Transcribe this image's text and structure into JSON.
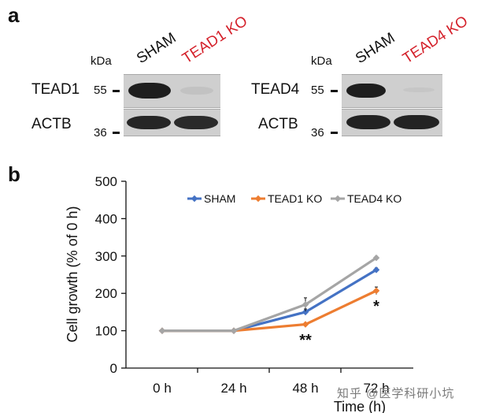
{
  "panel_a": {
    "letter": "a",
    "left_blot": {
      "kda_label": "kDa",
      "lanes": [
        "SHAM",
        "TEAD1 KO"
      ],
      "rows": [
        {
          "protein": "TEAD1",
          "mw": "55"
        },
        {
          "protein": "ACTB",
          "mw": "36"
        }
      ]
    },
    "right_blot": {
      "kda_label": "kDa",
      "lanes": [
        "SHAM",
        "TEAD4 KO"
      ],
      "rows": [
        {
          "protein": "TEAD4",
          "mw": "55"
        },
        {
          "protein": "ACTB",
          "mw": "36"
        }
      ]
    }
  },
  "panel_b": {
    "letter": "b"
  },
  "chart_data": {
    "type": "line",
    "title": "",
    "xlabel": "Time (h)",
    "ylabel": "Cell growth (% of 0 h)",
    "categories": [
      "0 h",
      "24 h",
      "48 h",
      "72 h"
    ],
    "yticks": [
      "0",
      "100",
      "200",
      "300",
      "400",
      "500"
    ],
    "ylim": [
      0,
      500
    ],
    "grid": false,
    "legend_position": "top-right",
    "series": [
      {
        "name": "SHAM",
        "color": "#4472c4",
        "values": [
          100,
          100,
          150,
          263
        ],
        "errors": [
          0,
          0,
          8,
          5
        ]
      },
      {
        "name": "TEAD1 KO",
        "color": "#ed7d31",
        "values": [
          100,
          100,
          117,
          207
        ],
        "errors": [
          0,
          0,
          3,
          10
        ]
      },
      {
        "name": "TEAD4 KO",
        "color": "#a5a5a5",
        "values": [
          100,
          100,
          170,
          295
        ],
        "errors": [
          0,
          0,
          18,
          4
        ]
      }
    ],
    "annotations": [
      {
        "text": "**",
        "category": "48 h"
      },
      {
        "text": "*",
        "category": "72 h"
      }
    ]
  },
  "watermark": "知乎 @医学科研小坑"
}
